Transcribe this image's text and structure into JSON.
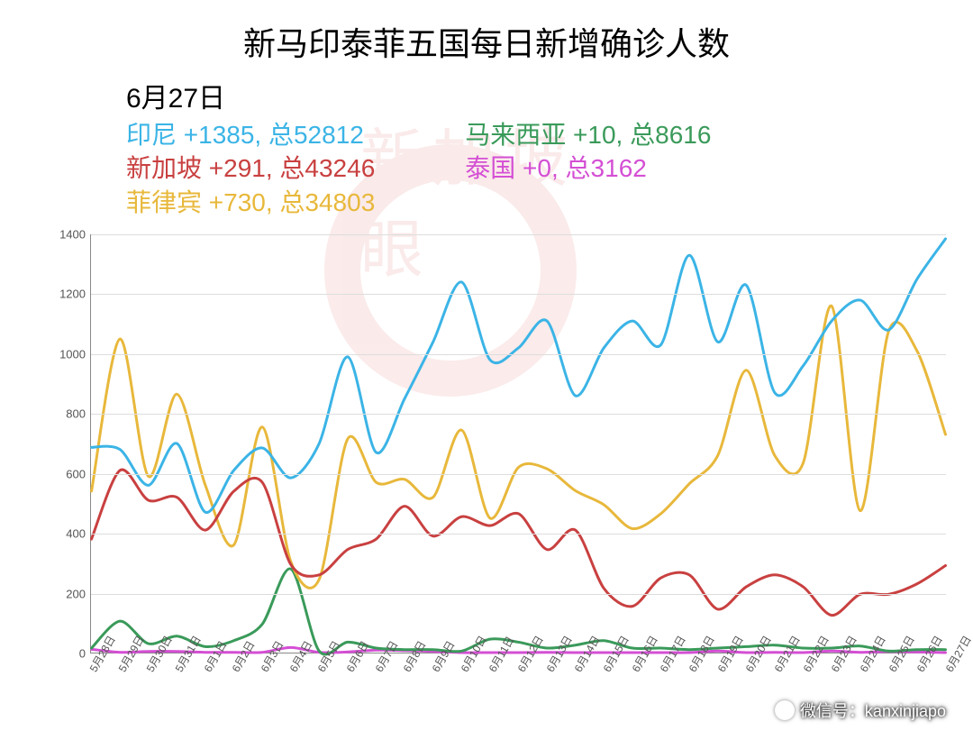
{
  "title": "新马印泰菲五国每日新增确诊人数",
  "date_label": "6月27日",
  "legend": {
    "indonesia": {
      "label": "印尼 +1385, 总52812",
      "color": "#3bb4e6"
    },
    "singapore": {
      "label": "新加坡 +291, 总43246",
      "color": "#c94040"
    },
    "philippines": {
      "label": "菲律宾 +730, 总34803",
      "color": "#e8b83b"
    },
    "malaysia": {
      "label": "马来西亚 +10, 总8616",
      "color": "#3a9a5a"
    },
    "thailand": {
      "label": "泰国 +0, 总3162",
      "color": "#d44fd4"
    }
  },
  "chart": {
    "type": "line",
    "background_color": "#ffffff",
    "grid_color": "#dddddd",
    "axis_color": "#888888",
    "line_width": 3,
    "title_fontsize": 36,
    "legend_fontsize": 28,
    "tick_fontsize": 13,
    "ylim": [
      0,
      1400
    ],
    "ytick_step": 200,
    "x_labels": [
      "5月28日",
      "5月29日",
      "5月30日",
      "5月31日",
      "6月1日",
      "6月2日",
      "6月3日",
      "6月4日",
      "6月5日",
      "6月6日",
      "6月7日",
      "6月8日",
      "6月9日",
      "6月10日",
      "6月11日",
      "6月12日",
      "6月13日",
      "6月14日",
      "6月15日",
      "6月16日",
      "6月17日",
      "6月18日",
      "6月19日",
      "6月20日",
      "6月21日",
      "6月22日",
      "6月23日",
      "6月24日",
      "6月25日",
      "6月26日",
      "6月27日"
    ],
    "series": {
      "indonesia": {
        "color": "#3bb4e6",
        "values": [
          687,
          680,
          560,
          700,
          470,
          610,
          685,
          585,
          700,
          990,
          670,
          850,
          1040,
          1240,
          980,
          1020,
          1110,
          860,
          1020,
          1110,
          1030,
          1330,
          1040,
          1230,
          870,
          960,
          1110,
          1180,
          1080,
          1250,
          1385
        ]
      },
      "singapore": {
        "color": "#c94040",
        "values": [
          380,
          610,
          510,
          520,
          410,
          540,
          570,
          295,
          260,
          345,
          380,
          490,
          390,
          455,
          425,
          465,
          345,
          410,
          215,
          155,
          250,
          260,
          145,
          220,
          260,
          220,
          125,
          195,
          195,
          230,
          291
        ]
      },
      "philippines": {
        "color": "#e8b83b",
        "values": [
          540,
          1050,
          590,
          865,
          560,
          360,
          755,
          305,
          245,
          715,
          570,
          580,
          520,
          745,
          450,
          620,
          615,
          542,
          495,
          415,
          465,
          565,
          660,
          945,
          660,
          635,
          1160,
          475,
          1075,
          1010,
          730
        ]
      },
      "malaysia": {
        "color": "#3a9a5a",
        "values": [
          15,
          105,
          30,
          55,
          20,
          40,
          95,
          280,
          5,
          35,
          15,
          10,
          10,
          5,
          45,
          35,
          15,
          25,
          40,
          15,
          15,
          10,
          15,
          20,
          25,
          15,
          15,
          22,
          5,
          10,
          10
        ]
      },
      "thailand": {
        "color": "#d44fd4",
        "values": [
          11,
          1,
          4,
          4,
          1,
          1,
          1,
          17,
          1,
          2,
          8,
          7,
          4,
          0,
          0,
          0,
          1,
          0,
          0,
          0,
          0,
          0,
          5,
          0,
          1,
          0,
          5,
          1,
          4,
          2,
          0
        ]
      }
    }
  },
  "watermark_text": "新加坡眼",
  "wechat_label": "微信号：kanxinjiapo"
}
